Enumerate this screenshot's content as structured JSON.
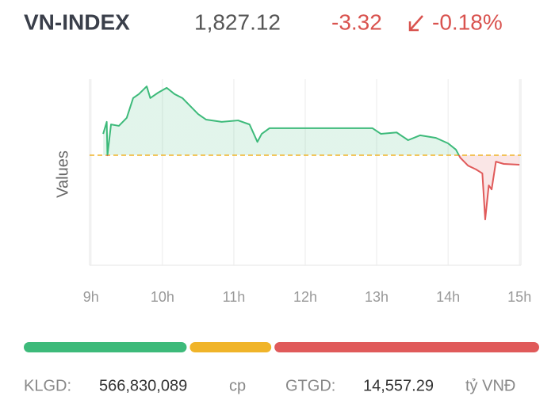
{
  "header": {
    "title": "VN-INDEX",
    "price": "1,827.12",
    "change": "-3.32",
    "change_percent": "-0.18%"
  },
  "chart_data": {
    "type": "line",
    "y_label": "Values",
    "x": [
      9.17,
      9.22,
      9.23,
      9.28,
      9.39,
      9.5,
      9.59,
      9.67,
      9.78,
      9.83,
      9.94,
      10.06,
      10.17,
      10.28,
      10.39,
      10.5,
      10.61,
      10.83,
      11.06,
      11.22,
      11.33,
      11.39,
      11.5,
      11.72,
      12.94,
      13.06,
      13.28,
      13.44,
      13.61,
      13.83,
      14.0,
      14.11,
      14.17,
      14.28,
      14.39,
      14.48,
      14.52,
      14.57,
      14.61,
      14.67,
      14.78,
      15.0
    ],
    "series": [
      {
        "values": [
          1837.9,
          1842.1,
          1830.4,
          1841.2,
          1840.7,
          1843.5,
          1850.4,
          1851.8,
          1854.5,
          1850.4,
          1852.3,
          1854.0,
          1851.8,
          1850.4,
          1847.6,
          1844.8,
          1842.9,
          1842.1,
          1842.6,
          1841.2,
          1835.1,
          1837.9,
          1839.9,
          1839.9,
          1839.9,
          1837.9,
          1838.4,
          1835.7,
          1837.4,
          1836.5,
          1834.6,
          1832.4,
          1829.6,
          1826.8,
          1825.5,
          1824.1,
          1808.0,
          1819.9,
          1818.5,
          1828.2,
          1827.4,
          1827.12
        ]
      }
    ],
    "reference_value": 1830.44,
    "up_color": "#3dba7a",
    "down_color": "#e05a5a",
    "reference_color": "#f0b429",
    "xlim": [
      8.98,
      15.02
    ],
    "ylim": [
      1792,
      1857
    ],
    "xticks": [
      {
        "value": 9,
        "label": "9h"
      },
      {
        "value": 10,
        "label": "10h"
      },
      {
        "value": 11,
        "label": "11h"
      },
      {
        "value": 12,
        "label": "12h"
      },
      {
        "value": 13,
        "label": "13h"
      },
      {
        "value": 14,
        "label": "14h"
      },
      {
        "value": 15,
        "label": "15h"
      }
    ],
    "grid": true
  },
  "market_breadth": {
    "values": [
      32,
      16,
      52
    ],
    "colors": [
      "#3dba7a",
      "#f0b429",
      "#e05a5a"
    ]
  },
  "footer": {
    "volume_label": "KLGD:",
    "volume": "566,830,089",
    "volume_unit": "cp",
    "value_label": "GTGD:",
    "value": "14,557.29",
    "value_unit": "tỷ VNĐ"
  }
}
